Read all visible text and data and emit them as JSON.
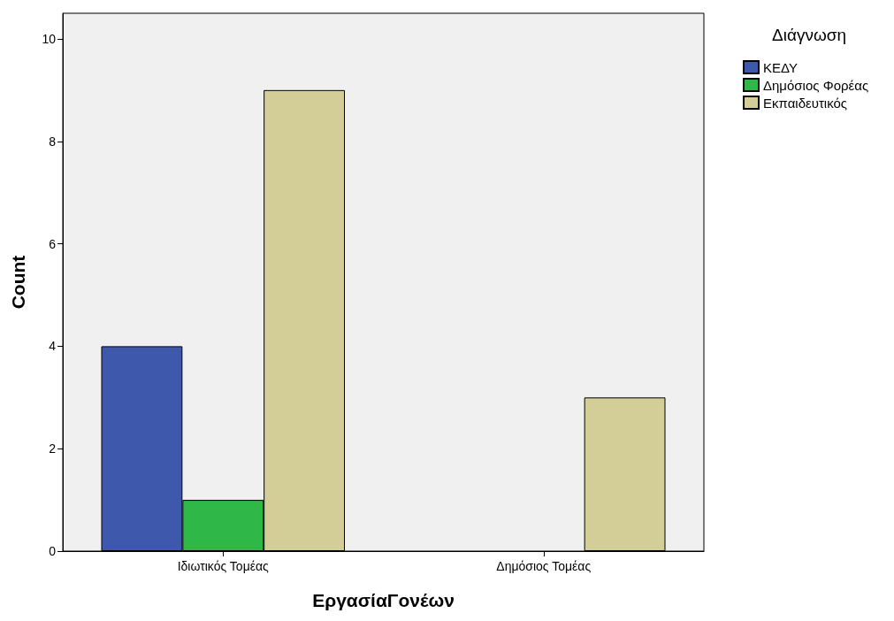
{
  "chart_data": {
    "type": "bar",
    "xlabel": "ΕργασίαΓονέων",
    "ylabel": "Count",
    "legend_title": "Διάγνωση",
    "categories": [
      "Ιδιωτικός Τομέας",
      "Δημόσιος Τομέας"
    ],
    "series": [
      {
        "name": "ΚΕΔΥ",
        "color": "#3e58ac",
        "values": [
          4,
          null
        ]
      },
      {
        "name": "Δημόσιος Φορέας",
        "color": "#2fb848",
        "values": [
          1,
          null
        ]
      },
      {
        "name": "Εκπαιδευτικός",
        "color": "#d3ce97",
        "values": [
          9,
          3
        ]
      }
    ],
    "ylim": [
      0,
      10.5
    ],
    "yticks": [
      0,
      2,
      4,
      6,
      8,
      10
    ],
    "grid": false,
    "legend": "right"
  }
}
